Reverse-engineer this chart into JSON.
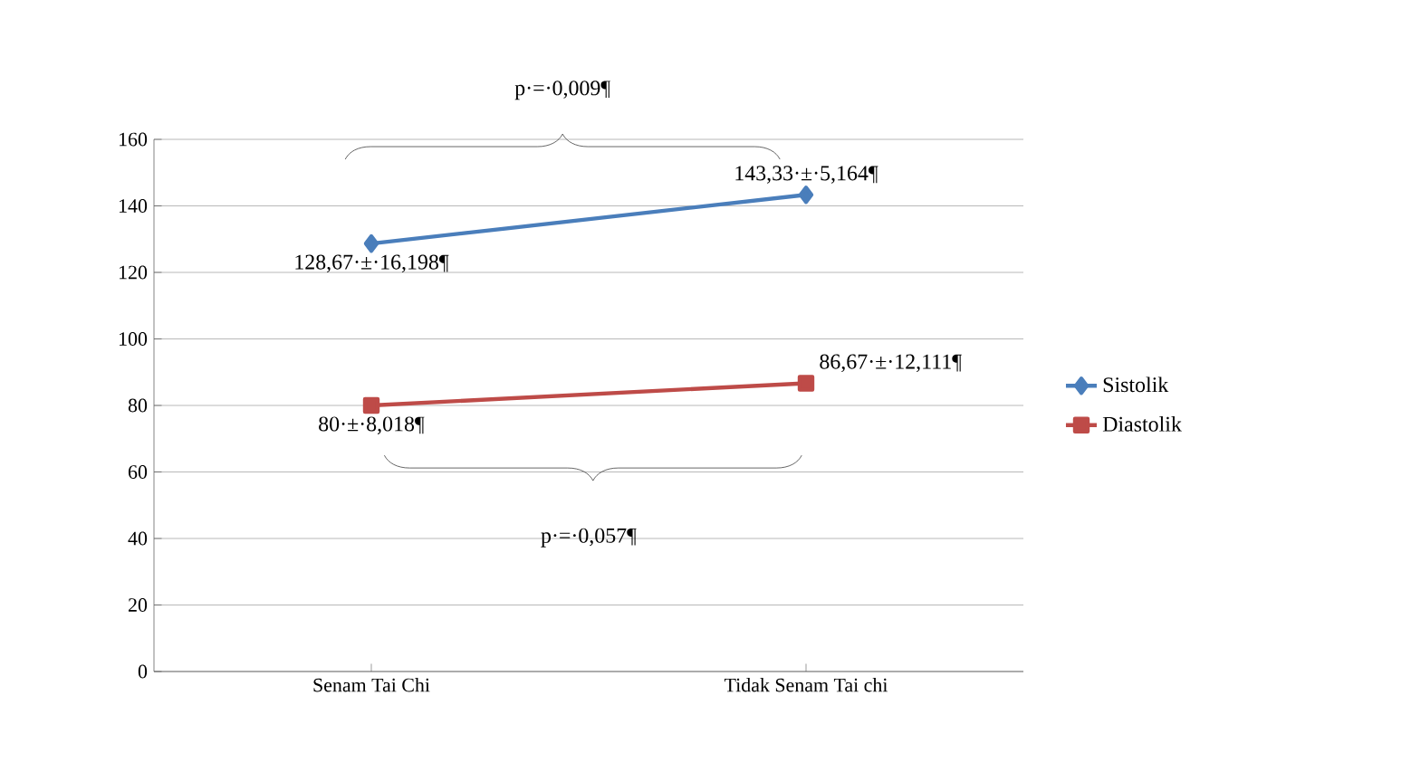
{
  "chart_data": {
    "type": "line",
    "categories": [
      "Senam Tai Chi",
      "Tidak Senam Tai chi"
    ],
    "series": [
      {
        "name": "Sistolik",
        "color": "#4a7ebb",
        "marker": "diamond",
        "values": [
          128.67,
          143.33
        ],
        "value_labels": [
          "128,67·±·16,198¶",
          "143,33·±·5,164¶"
        ]
      },
      {
        "name": "Diastolik",
        "color": "#be4b48",
        "marker": "square",
        "values": [
          80,
          86.67
        ],
        "value_labels": [
          "80·±·8,018¶",
          "86,67·±·12,111¶"
        ]
      }
    ],
    "ylim": [
      0,
      160
    ],
    "yticks": [
      0,
      20,
      40,
      60,
      80,
      100,
      120,
      140,
      160
    ],
    "grid": "y",
    "legend": "right",
    "annotations": [
      "p·=·0,009¶",
      "p·=·0,057¶"
    ]
  }
}
